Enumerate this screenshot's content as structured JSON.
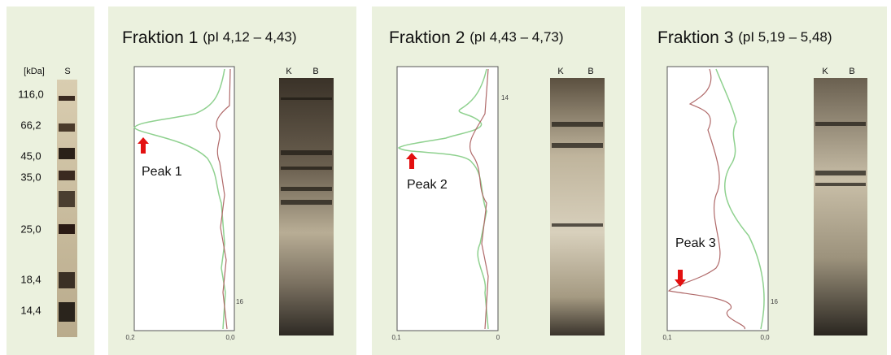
{
  "markers": {
    "unit": "[kDa]",
    "lane": "S",
    "values": [
      "116,0",
      "66,2",
      "45,0",
      "35,0",
      "25,0",
      "18,4",
      "14,4"
    ]
  },
  "panels": [
    {
      "title": "Fraktion 1",
      "range": "(pI 4,12 – 4,43)",
      "axis_left": "0,2",
      "axis_right": "0,0",
      "tick": "16",
      "peak": "Peak 1",
      "lanes": [
        "K",
        "B"
      ]
    },
    {
      "title": "Fraktion 2",
      "range": "(pI 4,43 – 4,73)",
      "axis_left": "0,1",
      "axis_right": "0",
      "tick": "14",
      "peak": "Peak 2",
      "lanes": [
        "K",
        "B"
      ]
    },
    {
      "title": "Fraktion 3",
      "range": "(pI 5,19 – 5,48)",
      "axis_left": "0,1",
      "axis_right": "0,0",
      "tick": "16",
      "peak": "Peak 3",
      "lanes": [
        "K",
        "B"
      ]
    }
  ]
}
